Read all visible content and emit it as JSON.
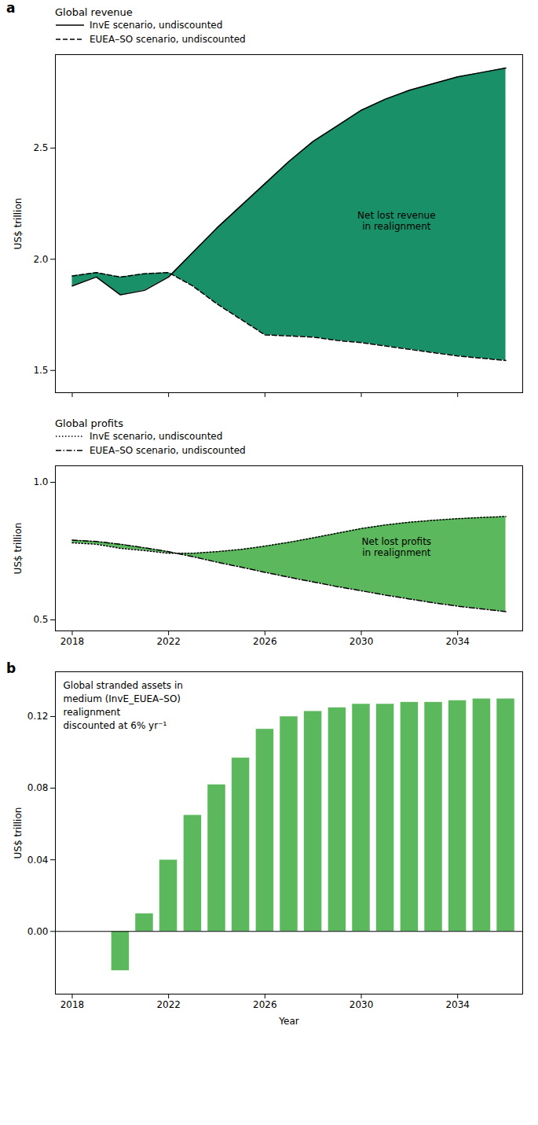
{
  "chart_data": [
    {
      "type": "line",
      "title": "Global revenue",
      "x": [
        2018,
        2019,
        2020,
        2021,
        2022,
        2023,
        2024,
        2025,
        2026,
        2027,
        2028,
        2029,
        2030,
        2031,
        2032,
        2033,
        2034,
        2035,
        2036
      ],
      "series": [
        {
          "name": "InvE scenario, undiscounted",
          "color": "black",
          "line_style": "solid",
          "values": [
            1.88,
            1.92,
            1.84,
            1.86,
            1.92,
            2.03,
            2.14,
            2.24,
            2.34,
            2.44,
            2.53,
            2.6,
            2.67,
            2.72,
            2.76,
            2.79,
            2.82,
            2.84,
            2.86
          ]
        },
        {
          "name": "EUEA–SO scenario, undiscounted",
          "color": "black",
          "line_style": "dashed",
          "values": [
            1.925,
            1.94,
            1.92,
            1.935,
            1.94,
            1.88,
            1.8,
            1.73,
            1.66,
            1.655,
            1.65,
            1.635,
            1.625,
            1.61,
            1.595,
            1.58,
            1.565,
            1.555,
            1.545
          ]
        }
      ],
      "color": "#1a9068",
      "ylabel": "US$ trillion",
      "xlim": [
        2017.3,
        2036.7
      ],
      "xticks": [
        2018,
        2022,
        2026,
        2030,
        2034
      ],
      "ylim": [
        1.4,
        2.92
      ],
      "yticks": [
        1.5,
        {
          "value": 2,
          "label": "2.0"
        },
        2.5
      ],
      "tick_labels": "y",
      "legend": "upper left",
      "annotations": [
        "a",
        "Net lost revenue\nin realignment"
      ]
    },
    {
      "type": "line",
      "title": "Global profits",
      "x": [
        2018,
        2019,
        2020,
        2021,
        2022,
        2023,
        2024,
        2025,
        2026,
        2027,
        2028,
        2029,
        2030,
        2031,
        2032,
        2033,
        2034,
        2035,
        2036
      ],
      "series": [
        {
          "name": "InvE scenario, undiscounted",
          "color": "black",
          "line_style": "dotted",
          "values": [
            0.78,
            0.775,
            0.76,
            0.752,
            0.742,
            0.742,
            0.748,
            0.756,
            0.768,
            0.782,
            0.798,
            0.815,
            0.832,
            0.845,
            0.855,
            0.862,
            0.868,
            0.872,
            0.876
          ]
        },
        {
          "name": "EUEA–SO scenario, undiscounted",
          "color": "black",
          "line_style": "dashdot",
          "values": [
            0.79,
            0.785,
            0.775,
            0.762,
            0.748,
            0.73,
            0.71,
            0.692,
            0.673,
            0.655,
            0.638,
            0.621,
            0.606,
            0.59,
            0.576,
            0.562,
            0.55,
            0.54,
            0.53
          ]
        }
      ],
      "color": "#5cb85c",
      "ylabel": "US$ trillion",
      "xlim": [
        2017.3,
        2036.7
      ],
      "xticks": [
        2018,
        2022,
        2026,
        2030,
        2034
      ],
      "ylim": [
        0.46,
        1.06
      ],
      "yticks": [
        0.5,
        {
          "value": 1,
          "label": "1.0"
        }
      ],
      "legend": "upper left",
      "annotations": [
        "Net lost profits\nin realignment"
      ]
    },
    {
      "type": "bar",
      "x": [
        2019,
        2020,
        2021,
        2022,
        2023,
        2024,
        2025,
        2026,
        2027,
        2028,
        2029,
        2030,
        2031,
        2032,
        2033,
        2034,
        2035,
        2036
      ],
      "values": [
        0.0,
        -0.022,
        0.01,
        0.04,
        0.065,
        0.082,
        0.097,
        0.113,
        0.12,
        0.123,
        0.125,
        0.127,
        0.127,
        0.128,
        0.128,
        0.129,
        0.13,
        0.13
      ],
      "color": "#5cb85c",
      "xlabel": "Year",
      "ylabel": "US$ trillion",
      "xlim": [
        2017.3,
        2036.7
      ],
      "xticks": [
        2018,
        2022,
        2026,
        2030,
        2034
      ],
      "ylim": [
        -0.035,
        0.145
      ],
      "yticks": [
        {
          "value": 0,
          "label": "0.00"
        },
        0.04,
        0.08,
        0.12
      ],
      "annotations": [
        "b",
        "Global stranded assets in\nmedium (InvE_EUEA–SO)\nrealignment\ndiscounted at 6% yr⁻¹"
      ]
    }
  ]
}
